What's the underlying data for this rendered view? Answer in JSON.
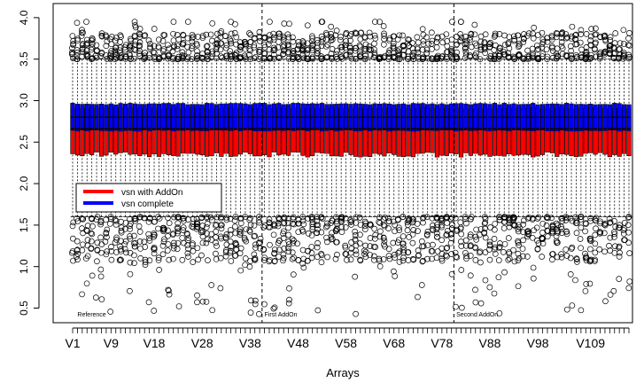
{
  "chart_data": {
    "type": "box",
    "xlabel": "Arrays",
    "ylabel": "",
    "ylim": [
      0.3,
      4.05
    ],
    "yticks": [
      "0.5",
      "1.0",
      "1.5",
      "2.0",
      "2.5",
      "3.0",
      "3.5",
      "4.0"
    ],
    "yticks_values": [
      0.5,
      1.0,
      1.5,
      2.0,
      2.5,
      3.0,
      3.5,
      4.0
    ],
    "n_arrays": 117,
    "xtick_labels": [
      "V1",
      "V9",
      "V18",
      "V28",
      "V38",
      "V48",
      "V58",
      "V68",
      "V78",
      "V88",
      "V98",
      "V109"
    ],
    "xtick_label_arrays": [
      1,
      9,
      18,
      28,
      38,
      48,
      58,
      68,
      78,
      88,
      98,
      109
    ],
    "group_boundaries_after_array": [
      40,
      80
    ],
    "group_labels": [
      "Reference",
      "First AddOn",
      "Second AddOn"
    ],
    "group_label_start_arrays": [
      2,
      41,
      81
    ],
    "legend": {
      "position": "left",
      "entries": [
        {
          "label": "vsn with AddOn",
          "color": "#ff0000"
        },
        {
          "label": "vsn complete",
          "color": "#0000ff"
        }
      ]
    },
    "series": [
      {
        "name": "vsn with AddOn",
        "color": "#ff0000",
        "median": 2.66,
        "q1": 2.35,
        "q3": 2.91,
        "whisker_low": 1.6,
        "whisker_high": 3.5
      },
      {
        "name": "vsn complete",
        "color": "#0000ff",
        "median": 2.8,
        "q1": 2.64,
        "q3": 2.96,
        "whisker_low": 1.6,
        "whisker_high": 3.5
      }
    ],
    "outliers_high_range": [
      3.5,
      3.95
    ],
    "outliers_low_range": [
      0.42,
      1.6
    ]
  }
}
